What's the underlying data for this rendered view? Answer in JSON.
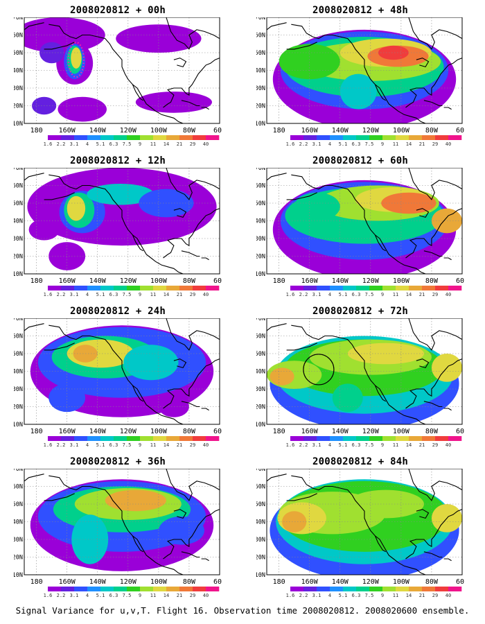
{
  "caption": "Signal Variance for u,v,T. Flight 16. Observation time 2008020812. 2008020600 ensemble.",
  "chart_data": {
    "type": "heatmap",
    "variable": "Signal Variance for u,v,T",
    "colorbar_levels": [
      "1.6",
      "2.2",
      "3.1",
      "4",
      "5.1",
      "6.3",
      "7.5",
      "9",
      "11",
      "14",
      "21",
      "29",
      "40"
    ],
    "colorbar_colors": [
      "#ffffff",
      "#9a00d8",
      "#6420e0",
      "#3050ff",
      "#1e90ff",
      "#00c8c8",
      "#00d08c",
      "#30d020",
      "#a0e030",
      "#e0d840",
      "#e8a838",
      "#f07838",
      "#f03c3c",
      "#f0148c"
    ],
    "x_ticks": [
      "180",
      "160W",
      "140W",
      "120W",
      "100W",
      "80W",
      "60W"
    ],
    "y_ticks": [
      "70N",
      "60N",
      "50N",
      "40N",
      "30N",
      "20N",
      "10N"
    ],
    "grid": true,
    "panels": [
      {
        "title": "2008020812 + 00h",
        "lead_hours": 0
      },
      {
        "title": "2008020812 + 48h",
        "lead_hours": 48
      },
      {
        "title": "2008020812 + 12h",
        "lead_hours": 12
      },
      {
        "title": "2008020812 + 60h",
        "lead_hours": 60
      },
      {
        "title": "2008020812 + 24h",
        "lead_hours": 24
      },
      {
        "title": "2008020812 + 72h",
        "lead_hours": 72
      },
      {
        "title": "2008020812 + 36h",
        "lead_hours": 36
      },
      {
        "title": "2008020812 + 84h",
        "lead_hours": 84
      }
    ]
  }
}
